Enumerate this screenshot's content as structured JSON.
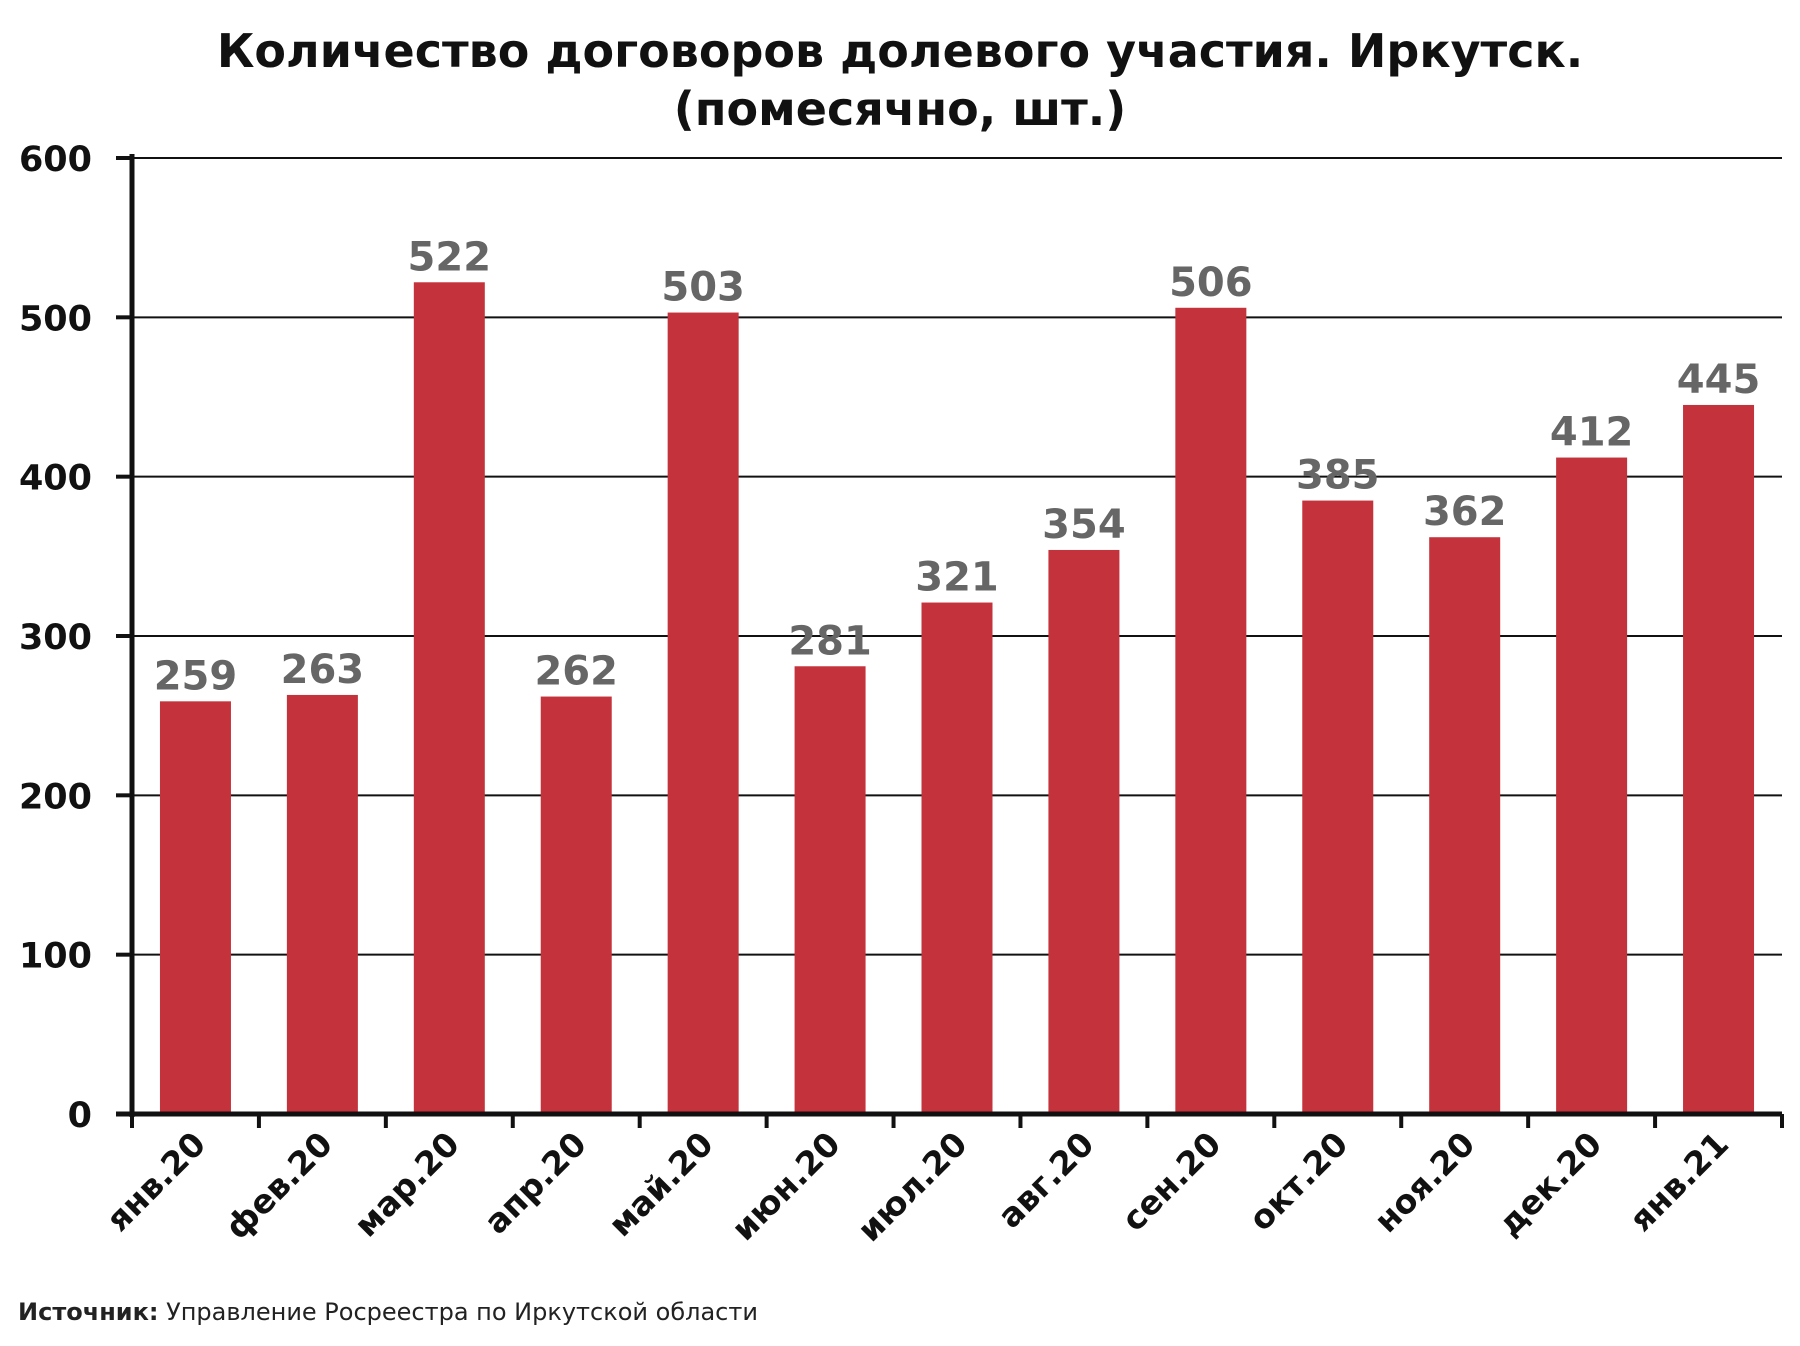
{
  "title_line1": "Количество договоров долевого участия. Иркутск.",
  "title_line2": "(помесячно, шт.)",
  "source": {
    "label": "Источник:",
    "text": " Управление Росреестра по Иркутской области"
  },
  "colors": {
    "bar": "#c4333b",
    "value_label": "#666666",
    "axis": "#111111"
  },
  "chart_data": {
    "type": "bar",
    "title": "Количество договоров долевого участия. Иркутск. (помесячно, шт.)",
    "categories": [
      "янв.20",
      "фев.20",
      "мар.20",
      "апр.20",
      "май.20",
      "июн.20",
      "июл.20",
      "авг.20",
      "сен.20",
      "окт.20",
      "ноя.20",
      "дек.20",
      "янв.21"
    ],
    "values": [
      259,
      263,
      522,
      262,
      503,
      281,
      321,
      354,
      506,
      385,
      362,
      412,
      445
    ],
    "yticks": [
      0,
      100,
      200,
      300,
      400,
      500,
      600
    ],
    "ylim": [
      0,
      600
    ],
    "grid": true,
    "legend": "none",
    "data_labels": true
  }
}
